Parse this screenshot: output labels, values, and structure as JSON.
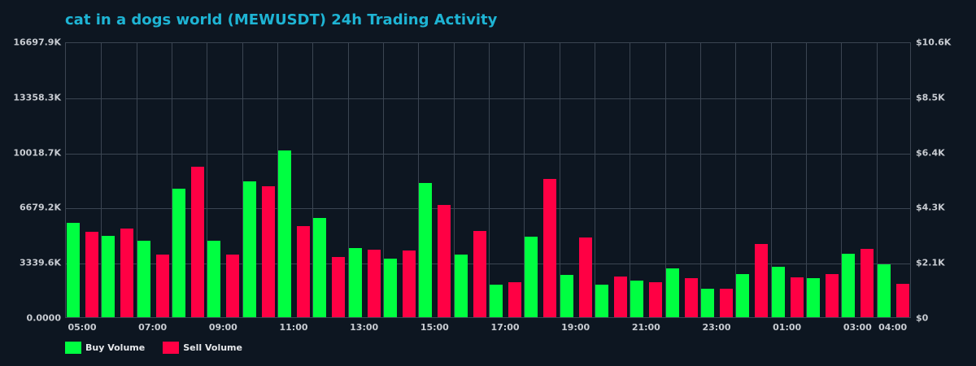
{
  "title": "cat in a dogs world (MEWUSDT) 24h Trading Activity",
  "colors": {
    "buy": "#00ff41",
    "sell": "#ff0044",
    "grid": "#3b4552",
    "title": "#1eb4d4",
    "background": "#0d1621"
  },
  "legend": {
    "buy": "Buy Volume",
    "sell": "Sell Volume"
  },
  "left_axis": [
    "16697.9K",
    "13358.3K",
    "10018.7K",
    "6679.2K",
    "3339.6K",
    "0.0000"
  ],
  "right_axis": [
    "$10.6K",
    "$8.5K",
    "$6.4K",
    "$4.3K",
    "$2.1K",
    "$0"
  ],
  "x_ticks": [
    {
      "label": "05:00",
      "idx": 0
    },
    {
      "label": "07:00",
      "idx": 2
    },
    {
      "label": "09:00",
      "idx": 4
    },
    {
      "label": "11:00",
      "idx": 6
    },
    {
      "label": "13:00",
      "idx": 8
    },
    {
      "label": "15:00",
      "idx": 10
    },
    {
      "label": "17:00",
      "idx": 12
    },
    {
      "label": "19:00",
      "idx": 14
    },
    {
      "label": "21:00",
      "idx": 16
    },
    {
      "label": "23:00",
      "idx": 18
    },
    {
      "label": "01:00",
      "idx": 20
    },
    {
      "label": "03:00",
      "idx": 22
    },
    {
      "label": "04:00",
      "idx": 23
    }
  ],
  "chart_data": {
    "type": "bar",
    "title": "cat in a dogs world (MEWUSDT) 24h Trading Activity",
    "xlabel": "",
    "ylabel": "Volume (K)",
    "y2label": "USD",
    "ylim": [
      0,
      16697.9
    ],
    "y2lim": [
      0,
      10600
    ],
    "grid": true,
    "legend_position": "bottom-left",
    "categories": [
      "05:00",
      "06:00",
      "07:00",
      "08:00",
      "09:00",
      "10:00",
      "11:00",
      "12:00",
      "13:00",
      "14:00",
      "15:00",
      "16:00",
      "17:00",
      "18:00",
      "19:00",
      "20:00",
      "21:00",
      "22:00",
      "23:00",
      "00:00",
      "01:00",
      "02:00",
      "03:00",
      "04:00"
    ],
    "series": [
      {
        "name": "Buy Volume",
        "unit": "K",
        "values": [
          5714,
          4926,
          4630,
          7783,
          4630,
          8226,
          10098,
          6010,
          4187,
          3547,
          8128,
          3793,
          1970,
          4877,
          2561,
          1970,
          2217,
          2956,
          1724,
          2611,
          3054,
          2364,
          3842,
          3202
        ]
      },
      {
        "name": "Sell Volume",
        "unit": "K",
        "values": [
          5172,
          5369,
          3793,
          9113,
          3793,
          7931,
          5517,
          3645,
          4089,
          4039,
          6798,
          5221,
          2118,
          8374,
          4827,
          2463,
          2118,
          2364,
          1724,
          4433,
          2414,
          2611,
          4138,
          2020
        ]
      }
    ]
  }
}
